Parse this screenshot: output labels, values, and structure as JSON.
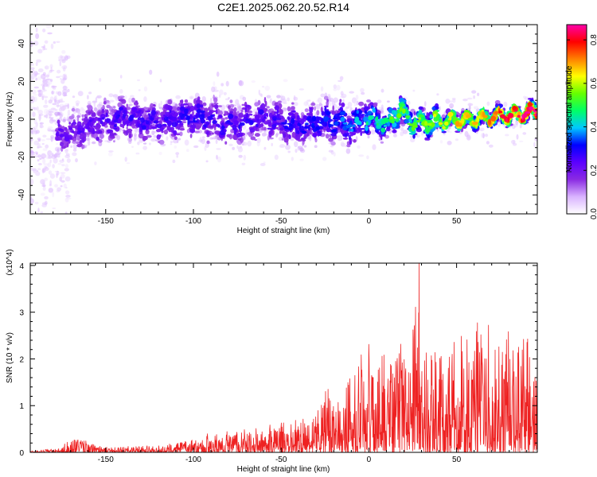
{
  "title": "C2E1.2025.062.20.52.R14",
  "chart_data": [
    {
      "type": "heatmap",
      "xlabel": "Height of straight line (km)",
      "ylabel": "Frequency (Hz)",
      "xlim": [
        -193,
        96
      ],
      "ylim": [
        -50,
        50
      ],
      "xticks": [
        -150,
        -100,
        -50,
        0,
        50
      ],
      "yticks": [
        -40,
        -20,
        0,
        20,
        40
      ],
      "colorbar": {
        "label": "Normalized spectral amplitude",
        "range": [
          0.0,
          0.87
        ],
        "ticks": [
          0.0,
          0.2,
          0.4,
          0.6,
          0.8
        ],
        "colormap": [
          "#ffffff",
          "#d9b3ff",
          "#8a2be2",
          "#5b00ff",
          "#0000ff",
          "#00c8ff",
          "#00ff66",
          "#66ff00",
          "#ffff00",
          "#ff8000",
          "#ff0000",
          "#ff00aa"
        ]
      },
      "ridge": {
        "x": [
          -178,
          -160,
          -140,
          -120,
          -100,
          -80,
          -60,
          -40,
          -20,
          -10,
          0,
          10,
          18,
          25,
          40,
          60,
          80,
          90,
          96
        ],
        "freq": [
          -9,
          -4,
          1,
          -2,
          2,
          -3,
          1,
          -4,
          0,
          -4,
          1,
          -3,
          5,
          -2,
          -1,
          0,
          2,
          3,
          5
        ],
        "peak_amplitude": [
          0.2,
          0.22,
          0.25,
          0.24,
          0.26,
          0.25,
          0.24,
          0.27,
          0.3,
          0.33,
          0.4,
          0.45,
          0.5,
          0.47,
          0.55,
          0.62,
          0.72,
          0.78,
          0.8
        ]
      }
    },
    {
      "type": "line",
      "xlabel": "Height of straight line (km)",
      "ylabel": "SNR (10 * v/v)",
      "y_multiplier": "(x10^4)",
      "xlim": [
        -193,
        96
      ],
      "ylim": [
        0,
        4.05
      ],
      "xticks": [
        -150,
        -100,
        -50,
        0,
        50
      ],
      "yticks": [
        0,
        1,
        2,
        3,
        4
      ],
      "color": "#ee2222",
      "envelope": {
        "x": [
          -193,
          -175,
          -170,
          -150,
          -120,
          -100,
          -90,
          -80,
          -70,
          -60,
          -50,
          -40,
          -30,
          -25,
          -20,
          -10,
          0,
          10,
          20,
          28,
          30,
          40,
          50,
          60,
          70,
          80,
          90,
          95,
          96
        ],
        "max": [
          0.05,
          0.1,
          0.35,
          0.12,
          0.15,
          0.3,
          0.45,
          0.45,
          0.5,
          0.55,
          0.7,
          0.75,
          0.9,
          1.9,
          1.2,
          2.0,
          2.4,
          2.1,
          2.7,
          4.05,
          2.6,
          2.5,
          2.6,
          2.8,
          2.75,
          2.6,
          3.05,
          1.9,
          1.7
        ]
      }
    }
  ]
}
